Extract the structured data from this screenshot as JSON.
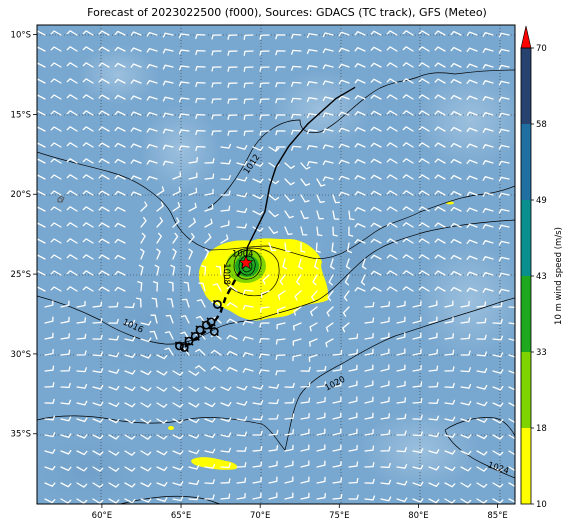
{
  "title": "Forecast of 2023022500 (f000), Sources: GDACS (TC track), GFS (Meteo)",
  "map": {
    "lon_range": [
      55.9,
      86.1
    ],
    "lat_range": [
      -39.4,
      -9.4
    ],
    "lon_ticks": [
      {
        "value": 60,
        "label": "60°E"
      },
      {
        "value": 65,
        "label": "65°E"
      },
      {
        "value": 70,
        "label": "70°E"
      },
      {
        "value": 75,
        "label": "75°E"
      },
      {
        "value": 80,
        "label": "80°E"
      },
      {
        "value": 85,
        "label": "85°E"
      }
    ],
    "lat_ticks": [
      {
        "value": -10,
        "label": "10°S"
      },
      {
        "value": -15,
        "label": "15°S"
      },
      {
        "value": -20,
        "label": "20°S"
      },
      {
        "value": -25,
        "label": "25°S"
      },
      {
        "value": -30,
        "label": "30°S"
      },
      {
        "value": -35,
        "label": "35°S"
      }
    ],
    "grid": true,
    "background_color": "#78a7cf",
    "storm_center": {
      "lon": 69.1,
      "lat": -24.3
    }
  },
  "isobars": [
    {
      "label": "1012",
      "label_lon": 69.6,
      "label_lat": -18.2,
      "label_angle": -55
    },
    {
      "label": "1008",
      "label_lon": 67.7,
      "label_lat": -25.0,
      "label_angle": 90
    },
    {
      "label": "1004",
      "label_lon": 68.9,
      "label_lat": -23.9,
      "label_angle": 0
    },
    {
      "label": "1016",
      "label_lon": 61.9,
      "label_lat": -28.4,
      "label_angle": 25
    },
    {
      "label": "1020",
      "label_lon": 74.8,
      "label_lat": -32.0,
      "label_angle": -28
    },
    {
      "label": "1024",
      "label_lon": 85.0,
      "label_lat": -37.3,
      "label_angle": 18
    }
  ],
  "tc_track": {
    "observed": [
      [
        76.0,
        -13.3
      ],
      [
        74.8,
        -14.0
      ],
      [
        73.0,
        -15.6
      ],
      [
        71.8,
        -17.0
      ],
      [
        71.0,
        -18.3
      ],
      [
        70.6,
        -19.5
      ],
      [
        70.3,
        -21.1
      ],
      [
        69.2,
        -23.3
      ],
      [
        69.1,
        -24.3
      ]
    ],
    "forecast": [
      [
        69.1,
        -24.3
      ],
      [
        68.4,
        -25.4
      ],
      [
        67.8,
        -26.5
      ],
      [
        67.5,
        -27.4
      ],
      [
        66.9,
        -28.3
      ],
      [
        66.4,
        -28.7
      ],
      [
        65.7,
        -29.2
      ],
      [
        65.2,
        -29.6
      ]
    ],
    "positions": [
      [
        67.3,
        -26.9
      ],
      [
        66.9,
        -28.0
      ],
      [
        67.1,
        -28.6
      ],
      [
        66.6,
        -28.2
      ],
      [
        66.2,
        -28.5
      ],
      [
        65.9,
        -28.9
      ],
      [
        65.5,
        -29.2
      ],
      [
        65.2,
        -29.6
      ],
      [
        64.9,
        -29.5
      ]
    ]
  },
  "colorbar": {
    "label": "10 m wind speed (m/s)",
    "ticks": [
      "10",
      "18",
      "33",
      "43",
      "49",
      "58",
      "70"
    ],
    "colors": [
      "#ffff00",
      "#7fd400",
      "#1fa81f",
      "#0a8f8f",
      "#1f6fa0",
      "#27426e"
    ],
    "extend_color": "#ff0000"
  }
}
